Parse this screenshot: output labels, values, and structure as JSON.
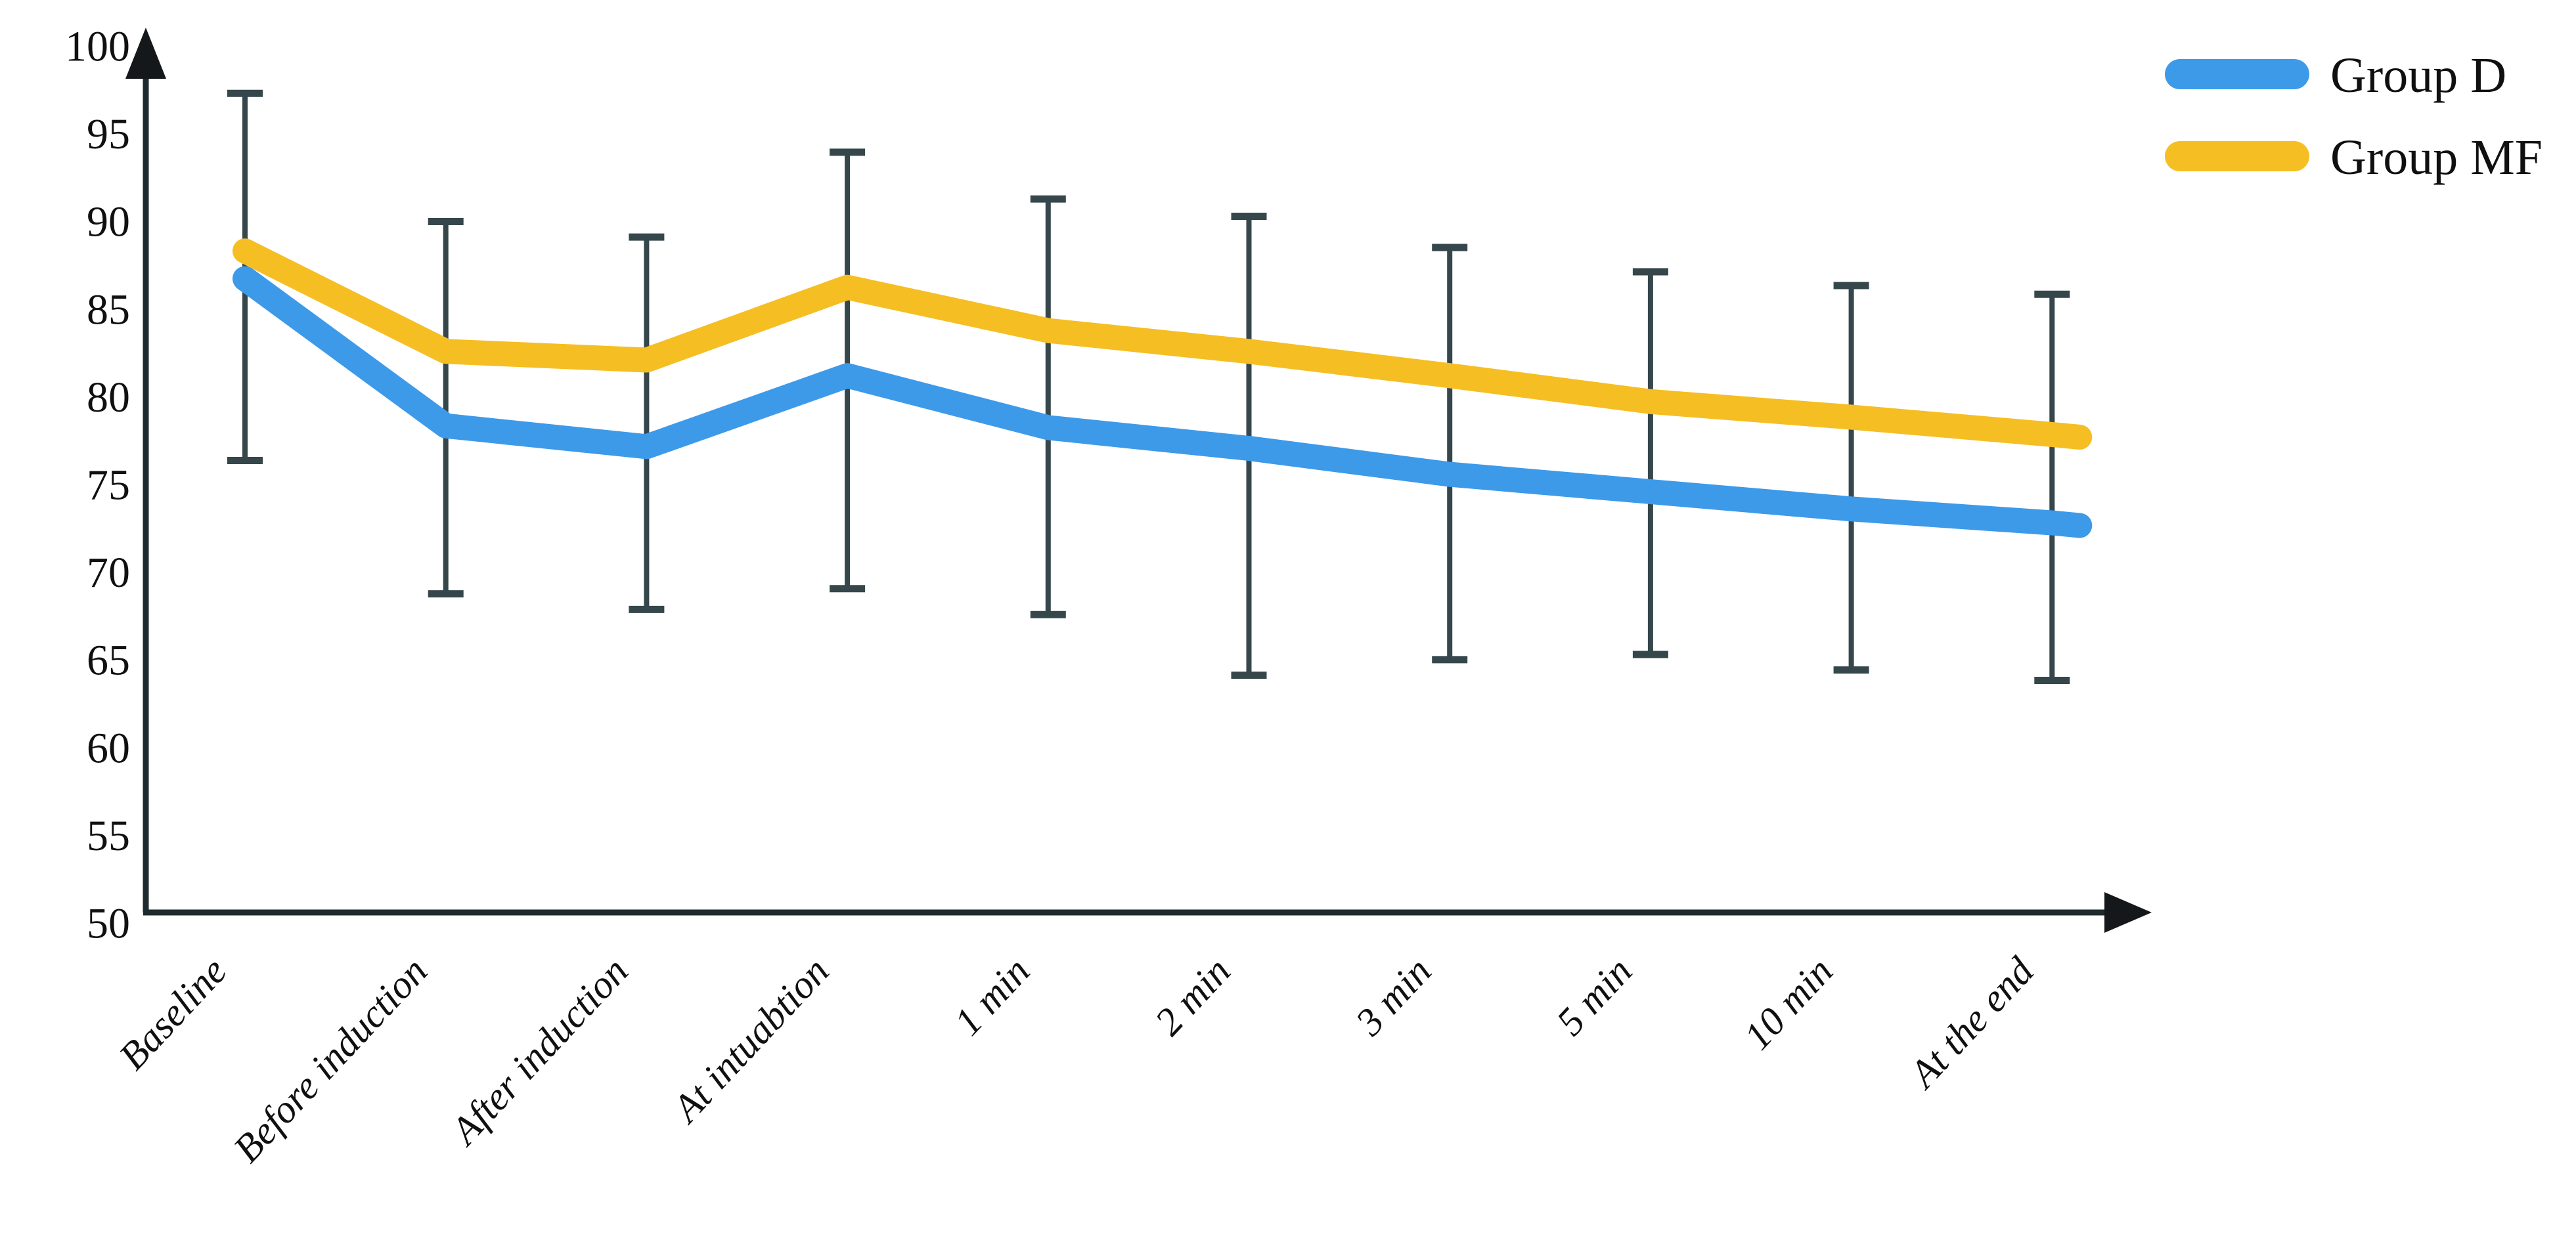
{
  "chart_data": {
    "type": "line",
    "title": "",
    "xlabel": "",
    "ylabel": "",
    "categories": [
      "Baseline",
      "Before induction",
      "After induction",
      "At intuabtion",
      "1 min",
      "2 min",
      "3 min",
      "5 min",
      "10 min",
      "At the end"
    ],
    "series": [
      {
        "name": "Group D",
        "color": "#3D9AE9",
        "values": [
          86.6,
          78.1,
          76.9,
          81.0,
          78.0,
          76.8,
          75.3,
          74.3,
          73.3,
          72.5
        ]
      },
      {
        "name": "Group MF",
        "color": "#F5BE23",
        "values": [
          88.2,
          82.4,
          81.9,
          86.1,
          83.6,
          82.4,
          81.0,
          79.5,
          78.6,
          77.6
        ]
      }
    ],
    "error_bars": {
      "description": "single vertical whisker per category from upper bound (above Group MF) to lower bound (below Group D), with end caps",
      "top": [
        97.3,
        89.9,
        89.0,
        93.9,
        91.2,
        90.2,
        88.4,
        87.0,
        86.2,
        85.7
      ],
      "bottom": [
        76.1,
        68.4,
        67.5,
        68.7,
        67.2,
        63.7,
        64.6,
        64.9,
        64.0,
        63.4
      ],
      "color": "#36474C"
    },
    "yticks": [
      100,
      95,
      90,
      85,
      80,
      75,
      70,
      65,
      60,
      55,
      50
    ],
    "ylim": [
      50,
      100
    ],
    "grid": false,
    "legend_position": "top-right",
    "axis_color": "#1E2A2E",
    "axes_have_arrowheads": true,
    "x_labels_rotated_degrees": -47
  },
  "legend": {
    "group_d_label": "Group D",
    "group_mf_label": "Group MF"
  }
}
